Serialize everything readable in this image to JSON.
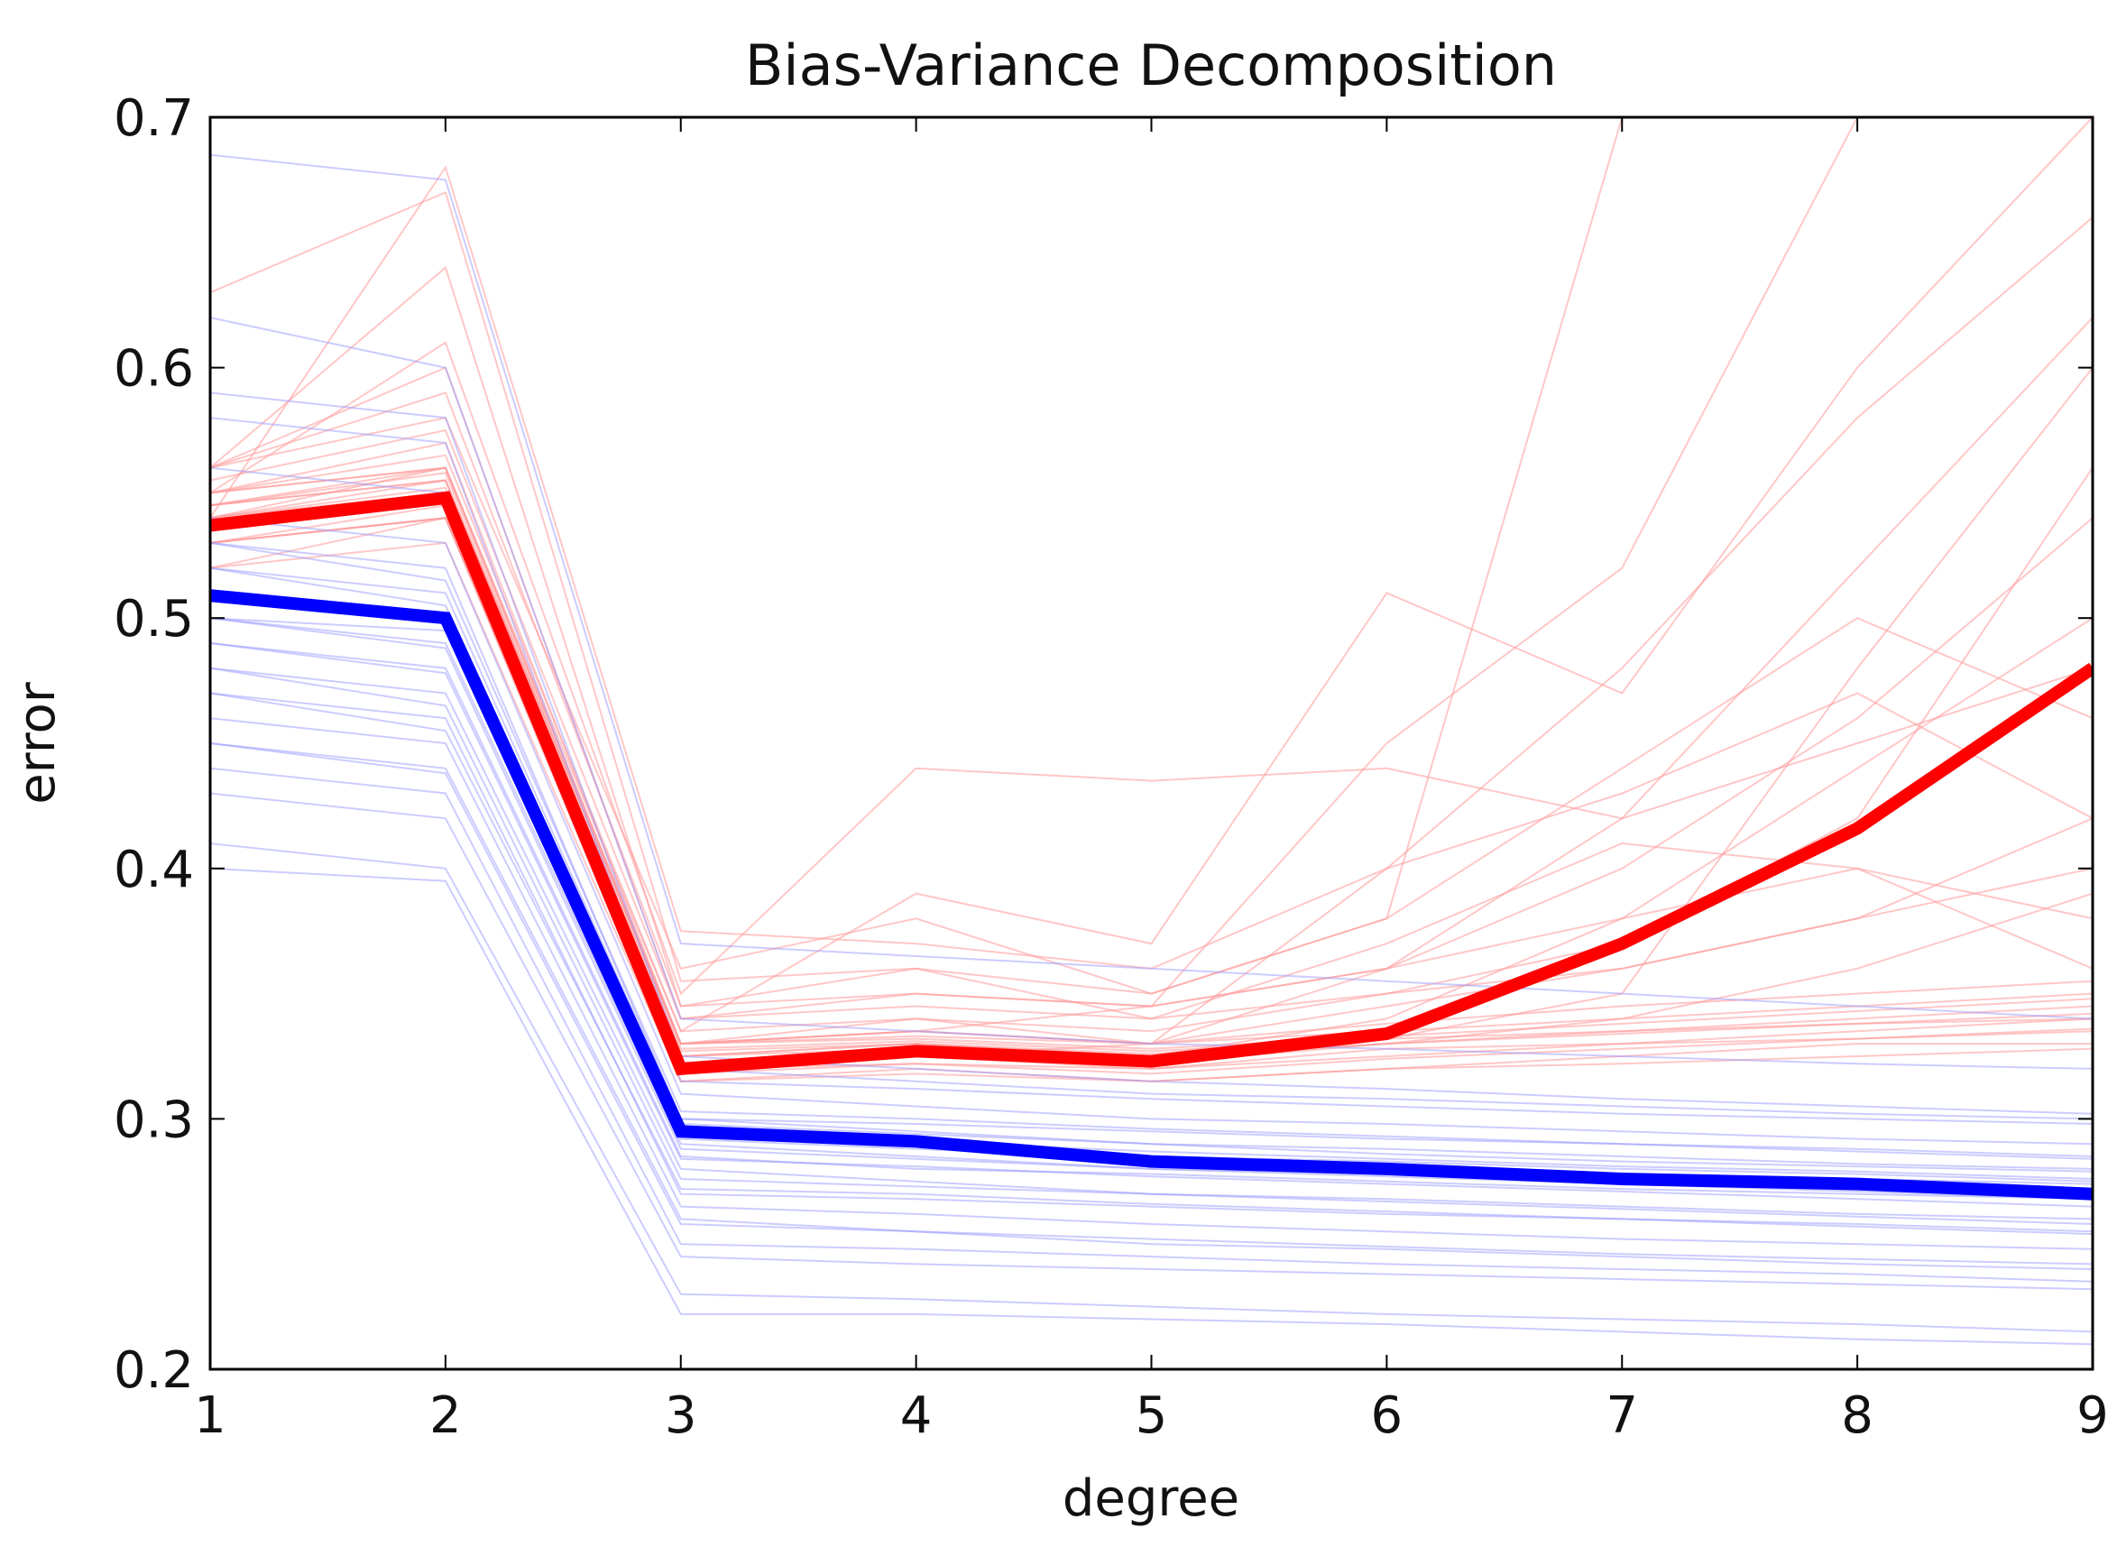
{
  "chart_data": {
    "type": "line",
    "title": "Bias-Variance Decomposition",
    "xlabel": "degree",
    "ylabel": "error",
    "xlim": [
      1,
      9
    ],
    "ylim": [
      0.2,
      0.7
    ],
    "x": [
      1,
      2,
      3,
      4,
      5,
      6,
      7,
      8,
      9
    ],
    "x_ticks": [
      "1",
      "2",
      "3",
      "4",
      "5",
      "6",
      "7",
      "8",
      "9"
    ],
    "y_ticks": [
      "0.2",
      "0.3",
      "0.4",
      "0.5",
      "0.6",
      "0.7"
    ],
    "grid": false,
    "colors": {
      "test_mean": "#ff0000",
      "train_mean": "#0000ff",
      "test_runs": "#ff9999",
      "train_runs": "#9999ff"
    },
    "series": [
      {
        "values": [
          0.537,
          0.548,
          0.32,
          0.327,
          0.323,
          0.334,
          0.37,
          0.416,
          0.48
        ],
        "color": "#ff0000"
      },
      {
        "values": [
          0.509,
          0.5,
          0.295,
          0.291,
          0.283,
          0.28,
          0.276,
          0.274,
          0.27
        ],
        "color": "#0000ff"
      }
    ],
    "trial_runs": {
      "test": [
        [
          0.55,
          0.56,
          0.33,
          0.335,
          0.33,
          0.335,
          0.34,
          0.345,
          0.35
        ],
        [
          0.53,
          0.54,
          0.32,
          0.325,
          0.32,
          0.325,
          0.33,
          0.335,
          0.34
        ],
        [
          0.56,
          0.6,
          0.34,
          0.345,
          0.34,
          0.35,
          0.36,
          0.38,
          0.4
        ],
        [
          0.54,
          0.55,
          0.325,
          0.33,
          0.325,
          0.33,
          0.335,
          0.34,
          0.345
        ],
        [
          0.52,
          0.53,
          0.315,
          0.32,
          0.315,
          0.32,
          0.325,
          0.33,
          0.33
        ],
        [
          0.55,
          0.61,
          0.35,
          0.44,
          0.435,
          0.44,
          0.42,
          0.45,
          0.48
        ],
        [
          0.54,
          0.56,
          0.335,
          0.39,
          0.37,
          0.51,
          0.47,
          0.6,
          0.7
        ],
        [
          0.56,
          0.58,
          0.36,
          0.38,
          0.35,
          0.38,
          0.7,
          0.7,
          0.7
        ],
        [
          0.53,
          0.545,
          0.32,
          0.325,
          0.33,
          0.36,
          0.42,
          0.52,
          0.62
        ],
        [
          0.545,
          0.555,
          0.33,
          0.34,
          0.33,
          0.4,
          0.48,
          0.58,
          0.66
        ],
        [
          0.55,
          0.57,
          0.33,
          0.335,
          0.345,
          0.45,
          0.52,
          0.7,
          0.7
        ],
        [
          0.535,
          0.55,
          0.325,
          0.33,
          0.325,
          0.34,
          0.38,
          0.44,
          0.5
        ],
        [
          0.52,
          0.54,
          0.32,
          0.322,
          0.32,
          0.328,
          0.33,
          0.332,
          0.335
        ],
        [
          0.545,
          0.56,
          0.33,
          0.332,
          0.328,
          0.333,
          0.338,
          0.343,
          0.348
        ],
        [
          0.555,
          0.575,
          0.34,
          0.35,
          0.345,
          0.36,
          0.38,
          0.4,
          0.38
        ],
        [
          0.53,
          0.54,
          0.315,
          0.318,
          0.315,
          0.32,
          0.322,
          0.325,
          0.328
        ],
        [
          0.56,
          0.59,
          0.345,
          0.36,
          0.34,
          0.37,
          0.41,
          0.4,
          0.36
        ],
        [
          0.54,
          0.555,
          0.33,
          0.335,
          0.33,
          0.345,
          0.36,
          0.38,
          0.42
        ],
        [
          0.55,
          0.565,
          0.335,
          0.34,
          0.335,
          0.35,
          0.37,
          0.42,
          0.56
        ],
        [
          0.535,
          0.548,
          0.322,
          0.326,
          0.322,
          0.33,
          0.34,
          0.36,
          0.39
        ],
        [
          0.545,
          0.558,
          0.328,
          0.331,
          0.327,
          0.332,
          0.335,
          0.338,
          0.34
        ],
        [
          0.56,
          0.64,
          0.345,
          0.35,
          0.345,
          0.36,
          0.4,
          0.46,
          0.54
        ],
        [
          0.63,
          0.67,
          0.355,
          0.36,
          0.35,
          0.38,
          0.44,
          0.5,
          0.46
        ],
        [
          0.54,
          0.68,
          0.375,
          0.37,
          0.36,
          0.4,
          0.43,
          0.47,
          0.42
        ],
        [
          0.55,
          0.56,
          0.33,
          0.333,
          0.33,
          0.338,
          0.345,
          0.35,
          0.355
        ],
        [
          0.53,
          0.54,
          0.318,
          0.322,
          0.318,
          0.324,
          0.328,
          0.332,
          0.336
        ],
        [
          0.545,
          0.555,
          0.327,
          0.33,
          0.326,
          0.332,
          0.35,
          0.48,
          0.6
        ],
        [
          0.54,
          0.552,
          0.325,
          0.328,
          0.324,
          0.33,
          0.334,
          0.338,
          0.342
        ]
      ],
      "train": [
        [
          0.5,
          0.49,
          0.29,
          0.285,
          0.28,
          0.278,
          0.275,
          0.272,
          0.27
        ],
        [
          0.52,
          0.51,
          0.3,
          0.295,
          0.29,
          0.288,
          0.285,
          0.282,
          0.28
        ],
        [
          0.48,
          0.47,
          0.28,
          0.275,
          0.27,
          0.268,
          0.265,
          0.262,
          0.26
        ],
        [
          0.45,
          0.44,
          0.26,
          0.255,
          0.25,
          0.248,
          0.245,
          0.242,
          0.24
        ],
        [
          0.54,
          0.53,
          0.31,
          0.305,
          0.3,
          0.298,
          0.295,
          0.292,
          0.29
        ],
        [
          0.58,
          0.57,
          0.32,
          0.315,
          0.31,
          0.308,
          0.305,
          0.302,
          0.3
        ],
        [
          0.41,
          0.4,
          0.23,
          0.228,
          0.225,
          0.222,
          0.22,
          0.218,
          0.215
        ],
        [
          0.4,
          0.395,
          0.222,
          0.222,
          0.22,
          0.218,
          0.215,
          0.212,
          0.21
        ],
        [
          0.47,
          0.46,
          0.27,
          0.268,
          0.265,
          0.262,
          0.26,
          0.258,
          0.255
        ],
        [
          0.51,
          0.5,
          0.295,
          0.29,
          0.285,
          0.283,
          0.28,
          0.278,
          0.275
        ],
        [
          0.53,
          0.52,
          0.3,
          0.298,
          0.295,
          0.292,
          0.29,
          0.288,
          0.285
        ],
        [
          0.49,
          0.48,
          0.285,
          0.28,
          0.278,
          0.275,
          0.272,
          0.27,
          0.268
        ],
        [
          0.62,
          0.6,
          0.34,
          0.335,
          0.33,
          0.328,
          0.325,
          0.322,
          0.32
        ],
        [
          0.685,
          0.675,
          0.37,
          0.365,
          0.36,
          0.355,
          0.35,
          0.345,
          0.34
        ],
        [
          0.44,
          0.43,
          0.25,
          0.248,
          0.245,
          0.242,
          0.24,
          0.238,
          0.235
        ],
        [
          0.46,
          0.45,
          0.265,
          0.262,
          0.258,
          0.255,
          0.252,
          0.25,
          0.248
        ],
        [
          0.5,
          0.495,
          0.292,
          0.288,
          0.284,
          0.28,
          0.278,
          0.276,
          0.274
        ],
        [
          0.52,
          0.505,
          0.298,
          0.294,
          0.29,
          0.286,
          0.283,
          0.281,
          0.279
        ],
        [
          0.43,
          0.42,
          0.245,
          0.242,
          0.24,
          0.238,
          0.236,
          0.234,
          0.232
        ],
        [
          0.56,
          0.55,
          0.315,
          0.312,
          0.308,
          0.305,
          0.302,
          0.3,
          0.298
        ],
        [
          0.5,
          0.488,
          0.288,
          0.284,
          0.28,
          0.277,
          0.274,
          0.271,
          0.268
        ],
        [
          0.47,
          0.455,
          0.272,
          0.27,
          0.266,
          0.263,
          0.26,
          0.257,
          0.254
        ],
        [
          0.59,
          0.58,
          0.325,
          0.32,
          0.315,
          0.312,
          0.308,
          0.305,
          0.302
        ],
        [
          0.51,
          0.498,
          0.294,
          0.291,
          0.287,
          0.284,
          0.281,
          0.279,
          0.276
        ],
        [
          0.45,
          0.438,
          0.258,
          0.255,
          0.252,
          0.249,
          0.246,
          0.244,
          0.242
        ],
        [
          0.49,
          0.478,
          0.284,
          0.281,
          0.277,
          0.274,
          0.271,
          0.268,
          0.265
        ],
        [
          0.53,
          0.515,
          0.303,
          0.3,
          0.296,
          0.293,
          0.29,
          0.287,
          0.284
        ],
        [
          0.48,
          0.465,
          0.276,
          0.273,
          0.27,
          0.267,
          0.264,
          0.261,
          0.258
        ]
      ]
    }
  }
}
